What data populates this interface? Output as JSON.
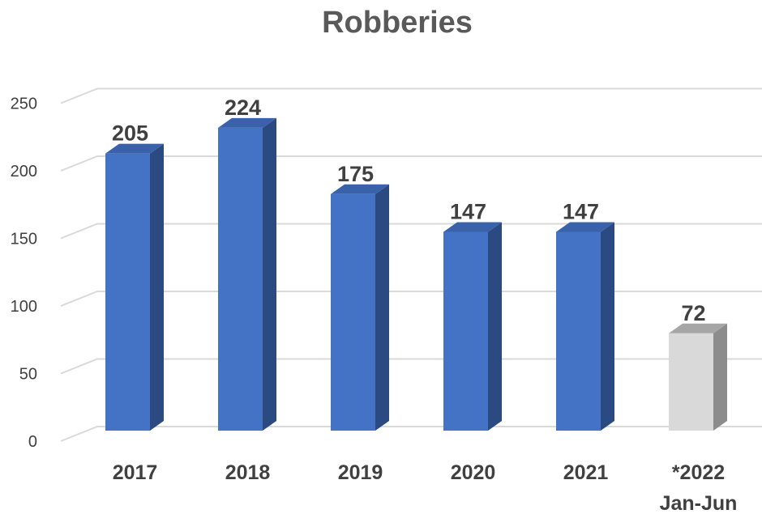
{
  "chart_data": {
    "type": "bar",
    "title": "Robberies",
    "categories": [
      [
        "2017"
      ],
      [
        "2018"
      ],
      [
        "2019"
      ],
      [
        "2020"
      ],
      [
        "2021"
      ],
      [
        "*2022",
        "Jan-Jun"
      ]
    ],
    "values": [
      205,
      224,
      175,
      147,
      147,
      72
    ],
    "data_labels": [
      "205",
      "224",
      "175",
      "147",
      "147",
      "72"
    ],
    "yticks": [
      "0",
      "50",
      "100",
      "150",
      "200",
      "250"
    ],
    "ylim": [
      0,
      250
    ],
    "grid": true,
    "legend": "none",
    "style": "3d-column",
    "colors": {
      "bar_front": "#4472C4",
      "bar_side": "#2B4A82",
      "bar_top": "#3A62AA",
      "highlight_front": "#D9D9D9",
      "highlight_side": "#8C8C8C",
      "highlight_top": "#A6A6A6",
      "gridline": "#D9D9D9",
      "text": "#404040",
      "title": "#595959"
    },
    "highlight_index": 5
  }
}
